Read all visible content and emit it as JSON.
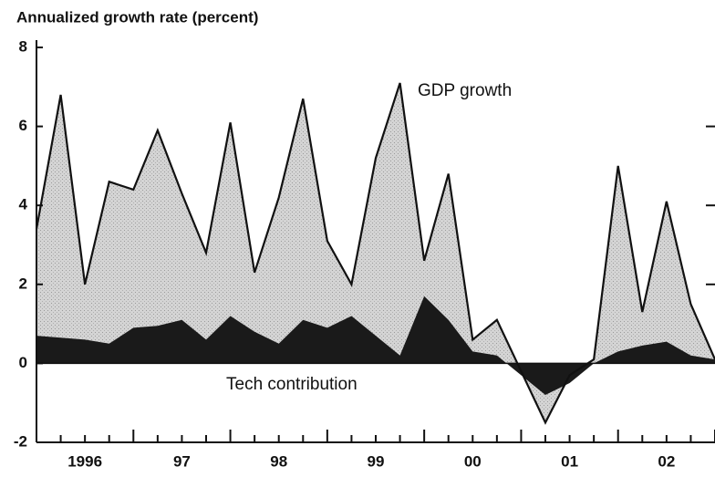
{
  "chart_data": {
    "type": "area",
    "title": "Annualized growth rate (percent)",
    "categories": [
      null,
      null,
      "1996",
      null,
      null,
      null,
      "97",
      null,
      null,
      null,
      "98",
      null,
      null,
      null,
      "99",
      null,
      null,
      null,
      "00",
      null,
      null,
      null,
      "01",
      null,
      null,
      null,
      "02",
      null,
      null
    ],
    "series": [
      {
        "name": "GDP growth",
        "color": "#cfcfcf",
        "values": [
          3.4,
          6.8,
          2.0,
          4.6,
          4.4,
          5.9,
          4.3,
          2.8,
          6.1,
          2.3,
          4.2,
          6.7,
          3.1,
          2.0,
          5.2,
          7.1,
          2.6,
          4.8,
          0.6,
          1.1,
          -0.2,
          -1.5,
          -0.3,
          0.1,
          5.0,
          1.3,
          4.1,
          1.5,
          0.1
        ]
      },
      {
        "name": "Tech contribution",
        "color": "#1a1a1a",
        "values": [
          0.7,
          0.65,
          0.6,
          0.5,
          0.9,
          0.95,
          1.1,
          0.6,
          1.2,
          0.8,
          0.5,
          1.1,
          0.9,
          1.2,
          0.7,
          0.2,
          1.7,
          1.1,
          0.3,
          0.2,
          -0.3,
          -0.8,
          -0.5,
          0.0,
          0.3,
          0.45,
          0.55,
          0.2,
          0.1
        ]
      }
    ],
    "ylim": [
      -2,
      8
    ],
    "yticks": [
      -2,
      0,
      2,
      4,
      6,
      8
    ]
  }
}
